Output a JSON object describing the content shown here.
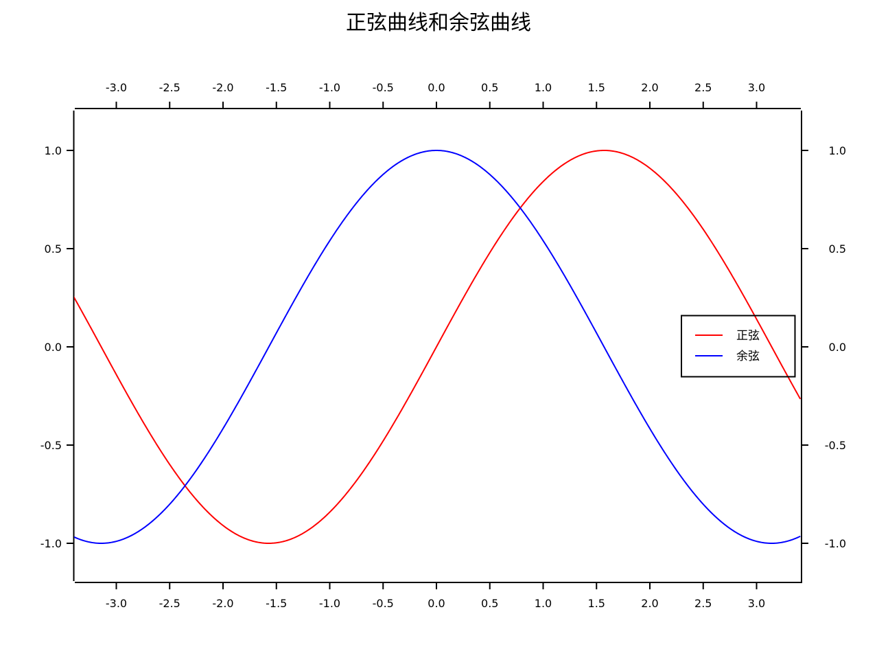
{
  "chart_data": {
    "type": "line",
    "title": "正弦曲线和余弦曲线",
    "xlabel": "",
    "ylabel": "",
    "xlim": [
      -3.41,
      3.41
    ],
    "ylim": [
      -1.2,
      1.2
    ],
    "grid": false,
    "legend_position": "right-center (inside plot)",
    "x_ticks": [
      -3.0,
      -2.5,
      -2.0,
      -1.5,
      -1.0,
      -0.5,
      0.0,
      0.5,
      1.0,
      1.5,
      2.0,
      2.5,
      3.0
    ],
    "x_tick_labels": [
      "-3.0",
      "-2.5",
      "-2.0",
      "-1.5",
      "-1.0",
      "-0.5",
      "0.0",
      "0.5",
      "1.0",
      "1.5",
      "2.0",
      "2.5",
      "3.0"
    ],
    "y_ticks": [
      1.0,
      0.5,
      0.0,
      -0.5,
      -1.0
    ],
    "y_tick_labels": [
      "1.0",
      "0.5",
      "0.0",
      "-0.5",
      "-1.0"
    ],
    "axes_mirrored": true,
    "series": [
      {
        "name": "正弦",
        "function": "sin(x)",
        "color": "#ff0000",
        "x": [
          -3.41,
          -3.0,
          -2.5,
          -2.0,
          -1.5708,
          -1.0,
          -0.5,
          0.0,
          0.5,
          1.0,
          1.5708,
          2.0,
          2.5,
          3.0,
          3.41
        ],
        "values": [
          0.265,
          -0.141,
          -0.598,
          -0.909,
          -1.0,
          -0.841,
          -0.479,
          0.0,
          0.479,
          0.841,
          1.0,
          0.909,
          0.598,
          0.141,
          -0.265
        ]
      },
      {
        "name": "余弦",
        "function": "cos(x)",
        "color": "#0000ff",
        "x": [
          -3.41,
          -3.1416,
          -2.5,
          -2.0,
          -1.5,
          -1.0,
          -0.5,
          0.0,
          0.5,
          1.0,
          1.5,
          2.0,
          2.5,
          3.1416,
          3.41
        ],
        "values": [
          -0.964,
          -1.0,
          -0.801,
          -0.416,
          0.071,
          0.54,
          0.878,
          1.0,
          0.878,
          0.54,
          0.071,
          -0.416,
          -0.801,
          -1.0,
          -0.964
        ]
      }
    ]
  },
  "legend": {
    "items": [
      {
        "label": "正弦",
        "color": "#ff0000"
      },
      {
        "label": "余弦",
        "color": "#0000ff"
      }
    ]
  },
  "colors": {
    "axis": "#000000",
    "background": "#ffffff"
  }
}
